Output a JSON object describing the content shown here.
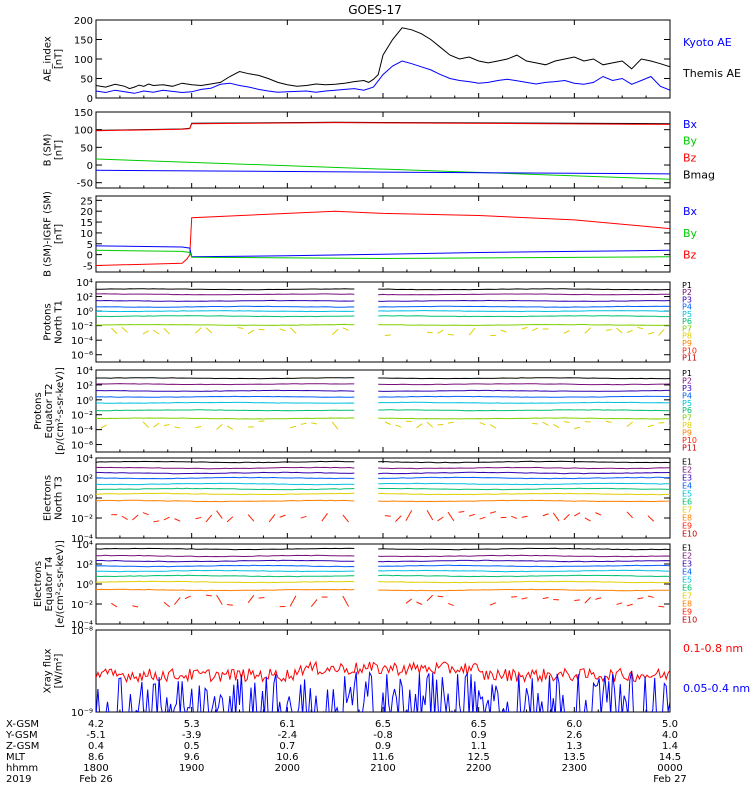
{
  "title": "GOES-17",
  "chart_data": {
    "type": "line",
    "x_ticks": [
      "1800",
      "1900",
      "2000",
      "2100",
      "2200",
      "2300",
      "0000"
    ],
    "panels": [
      {
        "ylabel": [
          "AE_index",
          "[nT]"
        ],
        "scale": "linear",
        "ylim": [
          0,
          200
        ],
        "ticks": [
          0,
          50,
          100,
          150,
          200
        ],
        "tick_labels": [
          "0",
          "50",
          "100",
          "150",
          "200"
        ],
        "legend": [
          {
            "name": "Kyoto AE",
            "color": "#0000ff"
          },
          {
            "name": "Themis AE",
            "color": "#000000"
          }
        ],
        "series": [
          {
            "name": "Themis AE",
            "color": "#000000",
            "x": [
              0,
              0.1,
              0.2,
              0.3,
              0.35,
              0.4,
              0.45,
              0.5,
              0.55,
              0.6,
              0.7,
              0.8,
              0.9,
              1.0,
              1.1,
              1.2,
              1.3,
              1.4,
              1.5,
              1.6,
              1.7,
              1.8,
              1.9,
              2.0,
              2.1,
              2.2,
              2.3,
              2.4,
              2.5,
              2.6,
              2.7,
              2.8,
              2.85,
              2.9,
              2.95,
              3.0,
              3.1,
              3.2,
              3.3,
              3.4,
              3.5,
              3.6,
              3.7,
              3.8,
              3.9,
              4.0,
              4.1,
              4.2,
              4.3,
              4.4,
              4.5,
              4.6,
              4.7,
              4.8,
              4.9,
              5.0,
              5.1,
              5.2,
              5.3,
              5.4,
              5.5,
              5.6,
              5.7,
              5.8,
              5.9,
              6.0
            ],
            "y": [
              32,
              28,
              35,
              30,
              24,
              28,
              33,
              30,
              36,
              32,
              34,
              30,
              38,
              34,
              32,
              36,
              40,
              55,
              68,
              62,
              58,
              50,
              40,
              34,
              30,
              32,
              36,
              34,
              35,
              38,
              42,
              45,
              40,
              48,
              60,
              110,
              150,
              180,
              175,
              165,
              150,
              130,
              110,
              100,
              105,
              95,
              90,
              95,
              100,
              110,
              95,
              90,
              85,
              95,
              100,
              105,
              95,
              100,
              85,
              90,
              95,
              75,
              100,
              95,
              88,
              80
            ]
          },
          {
            "name": "Kyoto AE",
            "color": "#0000ff",
            "x": [
              0,
              0.1,
              0.2,
              0.3,
              0.4,
              0.5,
              0.6,
              0.7,
              0.8,
              0.9,
              1.0,
              1.1,
              1.2,
              1.3,
              1.4,
              1.5,
              1.6,
              1.7,
              1.8,
              1.9,
              2.0,
              2.1,
              2.2,
              2.3,
              2.4,
              2.5,
              2.6,
              2.7,
              2.8,
              2.9,
              3.0,
              3.1,
              3.2,
              3.3,
              3.4,
              3.5,
              3.6,
              3.7,
              3.8,
              3.9,
              4.0,
              4.1,
              4.2,
              4.3,
              4.4,
              4.5,
              4.6,
              4.7,
              4.8,
              4.9,
              5.0,
              5.1,
              5.2,
              5.3,
              5.4,
              5.5,
              5.6,
              5.7,
              5.8,
              5.9,
              6.0
            ],
            "y": [
              18,
              14,
              20,
              16,
              12,
              18,
              15,
              20,
              17,
              14,
              16,
              22,
              25,
              35,
              38,
              32,
              28,
              22,
              18,
              15,
              16,
              17,
              18,
              15,
              18,
              20,
              22,
              24,
              20,
              28,
              60,
              82,
              95,
              88,
              80,
              72,
              60,
              50,
              45,
              42,
              38,
              40,
              45,
              48,
              44,
              40,
              36,
              40,
              42,
              45,
              38,
              35,
              40,
              55,
              45,
              50,
              35,
              45,
              55,
              30,
              20
            ]
          }
        ]
      },
      {
        "ylabel": [
          "B (SM)",
          "[nT]"
        ],
        "scale": "linear",
        "ylim": [
          -65,
          150
        ],
        "ticks": [
          -50,
          0,
          50,
          100,
          150
        ],
        "tick_labels": [
          "-50",
          "0",
          "50",
          "100",
          "150"
        ],
        "legend": [
          {
            "name": "Bx",
            "color": "#0000ff"
          },
          {
            "name": "By",
            "color": "#00cc00"
          },
          {
            "name": "Bz",
            "color": "#ff0000"
          },
          {
            "name": "Bmag",
            "color": "#000000"
          }
        ],
        "series": [
          {
            "name": "Bmag",
            "color": "#000000",
            "x": [
              0,
              0.9,
              0.98,
              1.0,
              2.5,
              6.0
            ],
            "y": [
              98,
              102,
              104,
              118,
              121,
              117
            ]
          },
          {
            "name": "Bz",
            "color": "#ff0000",
            "x": [
              0,
              0.9,
              0.98,
              1.0,
              2.5,
              6.0
            ],
            "y": [
              97,
              101,
              103,
              117,
              120,
              115
            ]
          },
          {
            "name": "By",
            "color": "#00cc00",
            "x": [
              0,
              6.0
            ],
            "y": [
              17,
              -40
            ]
          },
          {
            "name": "Bx",
            "color": "#0000ff",
            "x": [
              0,
              6.0
            ],
            "y": [
              -15,
              -25
            ]
          }
        ]
      },
      {
        "ylabel": [
          "B (SM)-IGRF (SM)",
          "[nT]"
        ],
        "scale": "linear",
        "ylim": [
          -8,
          27
        ],
        "ticks": [
          -5,
          0,
          5,
          10,
          15,
          20,
          25
        ],
        "tick_labels": [
          "-5",
          "0",
          "5",
          "10",
          "15",
          "20",
          "25"
        ],
        "legend": [
          {
            "name": "Bx",
            "color": "#0000ff"
          },
          {
            "name": "By",
            "color": "#00cc00"
          },
          {
            "name": "Bz",
            "color": "#ff0000"
          }
        ],
        "series": [
          {
            "name": "Bz",
            "color": "#ff0000",
            "x": [
              0,
              0.9,
              0.95,
              0.98,
              1.0,
              2.0,
              2.5,
              3.0,
              4.0,
              5.0,
              6.0
            ],
            "y": [
              -5,
              -4,
              -2,
              0,
              17,
              19,
              20,
              19,
              18,
              16,
              12
            ]
          },
          {
            "name": "Bx",
            "color": "#0000ff",
            "x": [
              0,
              0.9,
              0.98,
              1.0,
              2.0,
              3.0,
              4.0,
              5.0,
              6.0
            ],
            "y": [
              4,
              3.5,
              3,
              -1,
              -0.5,
              0.2,
              1,
              1.5,
              2
            ]
          },
          {
            "name": "By",
            "color": "#00cc00",
            "x": [
              0,
              0.9,
              0.98,
              1.0,
              3.0,
              6.0
            ],
            "y": [
              2,
              1.5,
              1,
              -1.2,
              -1.8,
              -1
            ]
          }
        ]
      },
      {
        "ylabel": [
          "Protons",
          "North T1"
        ],
        "scale": "log",
        "ylim": [
          -7,
          4
        ],
        "ticks": [
          -6,
          -4,
          -2,
          0,
          2,
          4
        ],
        "tick_labels": [
          "10⁻⁶",
          "10⁻⁴",
          "10⁻²",
          "10⁰",
          "10²",
          "10⁴"
        ],
        "gap": [
          2.7,
          2.95
        ],
        "channels": [
          {
            "name": "P1",
            "color": "#000000",
            "level": 3.0
          },
          {
            "name": "P2",
            "color": "#7a0f7a",
            "level": 2.3
          },
          {
            "name": "P3",
            "color": "#3000b0",
            "level": 1.4
          },
          {
            "name": "P4",
            "color": "#0060ff",
            "level": 0.6
          },
          {
            "name": "P5",
            "color": "#00c0e0",
            "level": 0.0
          },
          {
            "name": "P6",
            "color": "#00c070",
            "level": -0.7
          },
          {
            "name": "P7",
            "color": "#80d000",
            "level": -1.9
          },
          {
            "name": "P8",
            "color": "#e0d000",
            "level": -2.8
          },
          {
            "name": "P9",
            "color": "#ff8000",
            "level": null
          },
          {
            "name": "P10",
            "color": "#ff2000",
            "level": null
          },
          {
            "name": "P11",
            "color": "#c00000",
            "level": null
          }
        ]
      },
      {
        "ylabel": [
          "Protons",
          "Equator T2",
          "[p/(cm²-s-sr-keV)]"
        ],
        "scale": "log",
        "ylim": [
          -7,
          4
        ],
        "ticks": [
          -6,
          -4,
          -2,
          0,
          2,
          4
        ],
        "tick_labels": [
          "10⁻⁶",
          "10⁻⁴",
          "10⁻²",
          "10⁰",
          "10²",
          "10⁴"
        ],
        "gap": [
          2.7,
          2.95
        ],
        "channels": [
          {
            "name": "P1",
            "color": "#000000",
            "level": 2.9
          },
          {
            "name": "P2",
            "color": "#7a0f7a",
            "level": 2.1
          },
          {
            "name": "P3",
            "color": "#3000b0",
            "level": 1.2
          },
          {
            "name": "P4",
            "color": "#0060ff",
            "level": 0.4
          },
          {
            "name": "P5",
            "color": "#00c0e0",
            "level": -0.4
          },
          {
            "name": "P6",
            "color": "#00c070",
            "level": -1.4
          },
          {
            "name": "P7",
            "color": "#80d000",
            "level": -2.5
          },
          {
            "name": "P8",
            "color": "#e0d000",
            "level": -3.4
          },
          {
            "name": "P9",
            "color": "#ff8000",
            "level": null
          },
          {
            "name": "P10",
            "color": "#ff2000",
            "level": null
          },
          {
            "name": "P11",
            "color": "#c00000",
            "level": null
          }
        ]
      },
      {
        "ylabel": [
          "Electrons",
          "North T3"
        ],
        "scale": "log",
        "ylim": [
          -4,
          4
        ],
        "ticks": [
          -4,
          -2,
          0,
          2,
          4
        ],
        "tick_labels": [
          "10⁻⁴",
          "10⁻²",
          "10⁰",
          "10²",
          "10⁴"
        ],
        "gap": [
          2.7,
          2.95
        ],
        "channels": [
          {
            "name": "E1",
            "color": "#000000",
            "level": 3.6
          },
          {
            "name": "E2",
            "color": "#7a0f7a",
            "level": 3.0
          },
          {
            "name": "E3",
            "color": "#3000b0",
            "level": 2.5
          },
          {
            "name": "E4",
            "color": "#0060ff",
            "level": 2.0
          },
          {
            "name": "E5",
            "color": "#00c0e0",
            "level": 1.4
          },
          {
            "name": "E6",
            "color": "#00c070",
            "level": 0.9
          },
          {
            "name": "E7",
            "color": "#e0d000",
            "level": 0.4
          },
          {
            "name": "E8",
            "color": "#ff8000",
            "level": -0.3
          },
          {
            "name": "E9",
            "color": "#ff2000",
            "level": -1.8
          },
          {
            "name": "E10",
            "color": "#c00000",
            "level": null
          }
        ]
      },
      {
        "ylabel": [
          "Electrons",
          "Equator T4",
          "[e/(cm²-s-sr-keV)]"
        ],
        "scale": "log",
        "ylim": [
          -4,
          4
        ],
        "ticks": [
          -4,
          -2,
          0,
          2,
          4
        ],
        "tick_labels": [
          "10⁻⁴",
          "10⁻²",
          "10⁰",
          "10²",
          "10⁴"
        ],
        "gap": [
          2.7,
          2.95
        ],
        "channels": [
          {
            "name": "E1",
            "color": "#000000",
            "level": 3.5
          },
          {
            "name": "E2",
            "color": "#7a0f7a",
            "level": 2.8
          },
          {
            "name": "E3",
            "color": "#3000b0",
            "level": 2.3
          },
          {
            "name": "E4",
            "color": "#0060ff",
            "level": 1.8
          },
          {
            "name": "E5",
            "color": "#00c0e0",
            "level": 1.3
          },
          {
            "name": "E6",
            "color": "#00c070",
            "level": 0.8
          },
          {
            "name": "E7",
            "color": "#e0d000",
            "level": 0.2
          },
          {
            "name": "E8",
            "color": "#ff8000",
            "level": -0.6
          },
          {
            "name": "E9",
            "color": "#ff2000",
            "level": -1.7
          },
          {
            "name": "E10",
            "color": "#c00000",
            "level": null
          }
        ]
      },
      {
        "ylabel": [
          "Xray flux",
          "[W/m²]"
        ],
        "scale": "log",
        "ylim": [
          -9,
          -8
        ],
        "ticks": [
          -9,
          -8
        ],
        "tick_labels": [
          "10⁻⁹",
          "10⁻⁸"
        ],
        "legend": [
          {
            "name": "0.1-0.8 nm",
            "color": "#ff0000"
          },
          {
            "name": "0.05-0.4 nm",
            "color": "#0000ff"
          }
        ],
        "series": [
          {
            "name": "0.1-0.8 nm",
            "color": "#ff0000",
            "level": -8.55
          },
          {
            "name": "0.05-0.4 nm",
            "color": "#0000ff",
            "level": -8.95
          }
        ]
      }
    ],
    "ephemeris": {
      "rows": [
        {
          "label": "X-GSM",
          "values": [
            "4.2",
            "5.3",
            "6.1",
            "6.5",
            "6.5",
            "6.0",
            "5.0"
          ]
        },
        {
          "label": "Y-GSM",
          "values": [
            "-5.1",
            "-3.9",
            "-2.4",
            "-0.8",
            "0.9",
            "2.6",
            "4.0"
          ]
        },
        {
          "label": "Z-GSM",
          "values": [
            "0.4",
            "0.5",
            "0.7",
            "0.9",
            "1.1",
            "1.3",
            "1.4"
          ]
        },
        {
          "label": "MLT",
          "values": [
            "8.6",
            "9.6",
            "10.6",
            "11.6",
            "12.5",
            "13.5",
            "14.5"
          ]
        },
        {
          "label": "hhmm",
          "values": [
            "1800",
            "1900",
            "2000",
            "2100",
            "2200",
            "2300",
            "0000"
          ]
        }
      ],
      "year": "2019",
      "date_start": "Feb 26",
      "date_end": "Feb 27"
    }
  }
}
